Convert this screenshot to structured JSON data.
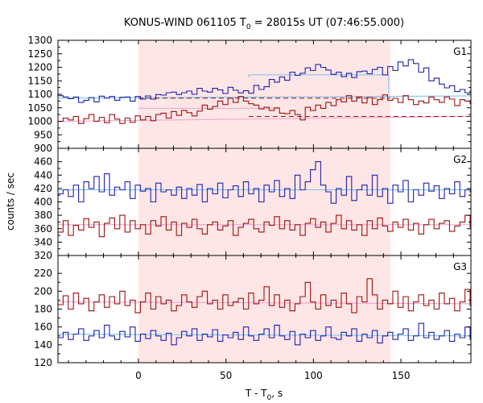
{
  "chart_data": {
    "type": "line",
    "title_main": "KONUS-WIND 061105 T",
    "title_sub": "0",
    "title_rest": " = 28015s UT (07:46:55.000)",
    "xlabel_main": "T - T",
    "xlabel_sub": "0",
    "xlabel_rest": ", s",
    "ylabel": "counts / sec",
    "xlim": [
      -46,
      190
    ],
    "xticks": [
      "0",
      "50",
      "100",
      "150"
    ],
    "xtick_values": [
      0,
      50,
      100,
      150
    ],
    "shaded_interval": [
      0,
      144
    ],
    "colors": {
      "blue": "#2020b0",
      "red": "#a01010",
      "shade": "#ffe6e6",
      "bg_light_blue": "#70c0f0",
      "bg_light_red": "#f0a0d0"
    },
    "panels": [
      {
        "label": "G1",
        "ylim": [
          900,
          1300
        ],
        "yticks": [
          "900",
          "950",
          "1000",
          "1050",
          "1100",
          "1150",
          "1200",
          "1250",
          "1300"
        ],
        "ytick_values": [
          900,
          950,
          1000,
          1050,
          1100,
          1150,
          1200,
          1250,
          1300
        ],
        "blue": {
          "bin": 2.944,
          "values": [
            1095,
            1090,
            1084,
            1090,
            1070,
            1078,
            1088,
            1072,
            1093,
            1086,
            1092,
            1078,
            1089,
            1090,
            1075,
            1092,
            1082,
            1094,
            1082,
            1099,
            1097,
            1106,
            1108,
            1099,
            1106,
            1112,
            1100,
            1122,
            1112,
            1108,
            1122,
            1116,
            1103,
            1126,
            1115,
            1105,
            1113,
            1104,
            1133,
            1118,
            1128,
            1155,
            1145,
            1164,
            1152,
            1182,
            1170,
            1178,
            1198,
            1188,
            1210,
            1200,
            1190,
            1174,
            1182,
            1165,
            1178,
            1162,
            1184,
            1186,
            1176,
            1192,
            1200,
            1172,
            1203,
            1188,
            1220,
            1205,
            1228,
            1214,
            1182,
            1198,
            1150,
            1160,
            1138,
            1124,
            1132,
            1110,
            1118,
            1106,
            1112,
            1085,
            1092,
            1100,
            1094,
            1088,
            1086,
            1100,
            1082,
            1098,
            1085,
            1110,
            1092,
            1080,
            1075,
            1088,
            1098,
            1062,
            1090,
            1104,
            1096,
            1115,
            1080,
            1075,
            1112,
            1068,
            1088,
            1060,
            1095,
            1102,
            1085,
            1092,
            1098,
            1070,
            1110,
            1085,
            1075,
            1090,
            1092,
            1100
          ]
        },
        "red": {
          "bin": 2.944,
          "values": [
            1000,
            1012,
            1005,
            1018,
            992,
            1010,
            1025,
            1000,
            1015,
            995,
            1025,
            1008,
            992,
            1012,
            996,
            1020,
            1005,
            1018,
            1002,
            1025,
            1030,
            1012,
            1036,
            1022,
            1040,
            1032,
            1020,
            1038,
            1060,
            1045,
            1055,
            1075,
            1062,
            1085,
            1070,
            1092,
            1075,
            1065,
            1060,
            1046,
            1052,
            1040,
            1050,
            1030,
            1028,
            1040,
            1025,
            1005,
            1052,
            1040,
            1060,
            1048,
            1070,
            1058,
            1080,
            1072,
            1095,
            1075,
            1090,
            1068,
            1088,
            1062,
            1080,
            1098,
            1078,
            1085,
            1070,
            1095,
            1080,
            1062,
            1075,
            1068,
            1090,
            1080,
            1070,
            1090,
            1082,
            1058,
            1080,
            1075,
            1065,
            1022,
            1030,
            1016,
            1008,
            1020,
            1000,
            1012,
            1028,
            1005,
            1018,
            1040,
            1025,
            998,
            1010,
            1020,
            1030,
            1012,
            1005,
            995,
            1018,
            1022,
            1008,
            1030,
            1012,
            1000,
            1020,
            1035,
            1010,
            1005,
            1025,
            1015,
            995,
            1012,
            1030,
            1005,
            1020,
            1012,
            1000,
            1010
          ]
        },
        "blue_bg": [
          [
            -46,
            1086
          ],
          [
            190,
            1094
          ]
        ],
        "red_bg": [
          [
            -46,
            1000
          ],
          [
            190,
            1018
          ]
        ],
        "blue_bg2": [
          [
            -46,
            1080
          ],
          [
            190,
            1098
          ]
        ],
        "red_dash": [
          1086,
          1018
        ],
        "blue_level": {
          "x": [
            63,
            143
          ],
          "y": 1172
        },
        "red_level": {
          "x": [
            0,
            80
          ],
          "y": 1048
        }
      },
      {
        "label": "G2",
        "ylim": [
          320,
          480
        ],
        "yticks": [
          "320",
          "340",
          "360",
          "380",
          "400",
          "420",
          "440",
          "460"
        ],
        "ytick_values": [
          320,
          340,
          360,
          380,
          400,
          420,
          440,
          460
        ],
        "blue": {
          "bin": 2.944,
          "values": [
            412,
            418,
            408,
            425,
            400,
            430,
            420,
            438,
            415,
            442,
            410,
            422,
            418,
            430,
            405,
            425,
            416,
            420,
            400,
            428,
            415,
            418,
            410,
            422,
            405,
            420,
            410,
            426,
            400,
            420,
            412,
            428,
            406,
            418,
            424,
            408,
            430,
            412,
            420,
            400,
            425,
            415,
            432,
            408,
            420,
            405,
            440,
            418,
            430,
            448,
            460,
            425,
            415,
            398,
            420,
            410,
            438,
            402,
            418,
            425,
            410,
            440,
            408,
            420,
            398,
            425,
            415,
            432,
            400,
            418,
            410,
            428,
            416,
            424,
            405,
            420,
            412,
            430,
            408,
            418,
            415,
            426,
            402,
            420,
            410,
            422,
            395,
            416,
            425,
            408,
            420,
            412,
            430,
            400,
            418,
            426,
            405,
            420,
            415,
            410,
            428,
            402,
            420,
            415,
            398,
            425,
            412,
            432,
            405,
            420,
            418,
            410,
            424,
            402,
            436,
            418,
            410,
            425,
            415,
            420
          ]
        },
        "red": {
          "bin": 2.944,
          "values": [
            355,
            372,
            350,
            365,
            358,
            375,
            362,
            370,
            348,
            368,
            376,
            360,
            380,
            355,
            372,
            360,
            366,
            352,
            372,
            364,
            378,
            358,
            370,
            350,
            368,
            362,
            374,
            360,
            352,
            366,
            370,
            358,
            364,
            372,
            350,
            362,
            368,
            374,
            360,
            355,
            370,
            365,
            378,
            360,
            372,
            358,
            366,
            350,
            368,
            375,
            362,
            370,
            355,
            368,
            380,
            360,
            372,
            358,
            366,
            350,
            372,
            360,
            376,
            364,
            356,
            370,
            362,
            374,
            358,
            368,
            352,
            366,
            374,
            360,
            368,
            372,
            356,
            364,
            370,
            380,
            362,
            358,
            372,
            366,
            370,
            378,
            360,
            368,
            358,
            362,
            382,
            370,
            360,
            375,
            355,
            368,
            362,
            372,
            358,
            350,
            366,
            372,
            360,
            355,
            370,
            364,
            350,
            358,
            372,
            365,
            360,
            375,
            352,
            368,
            362,
            370,
            355,
            372,
            365,
            358
          ]
        },
        "blue_bg": [
          [
            -46,
            418
          ],
          [
            190,
            418
          ]
        ],
        "red_bg": [
          [
            -46,
            366
          ],
          [
            190,
            366
          ]
        ]
      },
      {
        "label": "G3",
        "ylim": [
          120,
          240
        ],
        "yticks": [
          "120",
          "140",
          "160",
          "180",
          "200",
          "220"
        ],
        "ytick_values": [
          120,
          140,
          160,
          180,
          200,
          220
        ],
        "blue": {
          "bin": 2.944,
          "values": [
            148,
            154,
            146,
            152,
            158,
            145,
            150,
            156,
            148,
            162,
            150,
            146,
            155,
            149,
            160,
            144,
            152,
            147,
            156,
            150,
            145,
            153,
            140,
            148,
            155,
            150,
            158,
            145,
            152,
            149,
            157,
            144,
            151,
            148,
            154,
            146,
            160,
            150,
            145,
            152,
            158,
            148,
            162,
            150,
            146,
            155,
            140,
            152,
            148,
            156,
            145,
            150,
            160,
            148,
            146,
            154,
            150,
            158,
            144,
            152,
            148,
            156,
            142,
            150,
            154,
            146,
            152,
            158,
            145,
            150,
            164,
            148,
            154,
            146,
            150,
            156,
            144,
            152,
            148,
            160,
            146,
            152,
            150,
            158,
            144,
            150,
            154,
            148,
            156,
            146,
            152,
            150,
            142,
            148,
            156,
            150,
            158,
            144,
            152,
            148,
            156,
            146,
            150,
            154,
            144,
            152,
            148,
            156,
            150,
            146,
            154,
            158,
            148,
            150,
            144,
            152,
            156,
            148,
            150,
            154
          ]
        },
        "red": {
          "bin": 2.944,
          "values": [
            185,
            195,
            180,
            198,
            186,
            192,
            178,
            188,
            196,
            182,
            194,
            186,
            200,
            184,
            190,
            176,
            188,
            198,
            180,
            194,
            186,
            190,
            178,
            184,
            196,
            188,
            182,
            194,
            200,
            186,
            190,
            180,
            196,
            184,
            188,
            192,
            180,
            198,
            186,
            190,
            205,
            184,
            196,
            182,
            190,
            178,
            186,
            194,
            210,
            188,
            180,
            196,
            184,
            190,
            182,
            198,
            186,
            176,
            194,
            188,
            214,
            196,
            180,
            190,
            186,
            200,
            182,
            194,
            178,
            188,
            196,
            184,
            190,
            180,
            198,
            186,
            192,
            178,
            188,
            202,
            184,
            194,
            180,
            190,
            196,
            184,
            188,
            178,
            196,
            190,
            182,
            192,
            186,
            198,
            180,
            190,
            184,
            196,
            178,
            188,
            194,
            182,
            190,
            186,
            180,
            196,
            188,
            176,
            192,
            184,
            190,
            186,
            178,
            194,
            188,
            182,
            196,
            186,
            190,
            184
          ]
        },
        "blue_bg": [
          [
            -46,
            152
          ],
          [
            190,
            150
          ]
        ],
        "red_bg": [
          [
            -46,
            188
          ],
          [
            190,
            186
          ]
        ]
      }
    ]
  }
}
